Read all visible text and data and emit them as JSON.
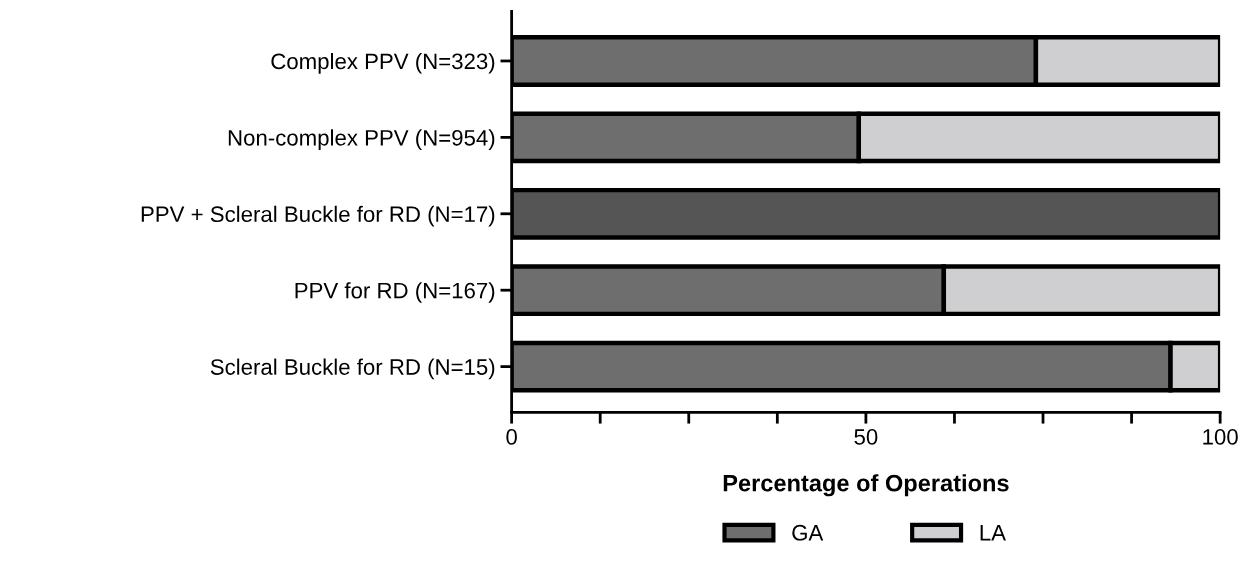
{
  "chart_data": {
    "type": "bar",
    "orientation": "horizontal",
    "stacked": true,
    "categories": [
      "Complex PPV (N=323)",
      "Non-complex PPV (N=954)",
      "PPV + Scleral Buckle for RD (N=17)",
      "PPV for RD (N=167)",
      "Scleral Buckle for RD (N=15)"
    ],
    "series": [
      {
        "name": "GA",
        "color": "#6e6e6e",
        "colors": [
          "#6e6e6e",
          "#6e6e6e",
          "#555555",
          "#6e6e6e",
          "#6e6e6e"
        ],
        "values": [
          74,
          49,
          100,
          61,
          93
        ]
      },
      {
        "name": "LA",
        "color": "#cfcfd1",
        "values": [
          26,
          51,
          null,
          39,
          7
        ]
      }
    ],
    "xlabel": "Percentage of Operations",
    "xlim": [
      0,
      100
    ],
    "xticks": [
      0,
      {
        "value": 12.5,
        "label": null
      },
      {
        "value": 25,
        "label": null
      },
      {
        "value": 37.5,
        "label": null
      },
      50,
      {
        "value": 62.5,
        "label": null
      },
      {
        "value": 75,
        "label": null
      },
      {
        "value": 87.5,
        "label": null
      },
      100
    ],
    "grid": false,
    "legend": "bottom"
  }
}
